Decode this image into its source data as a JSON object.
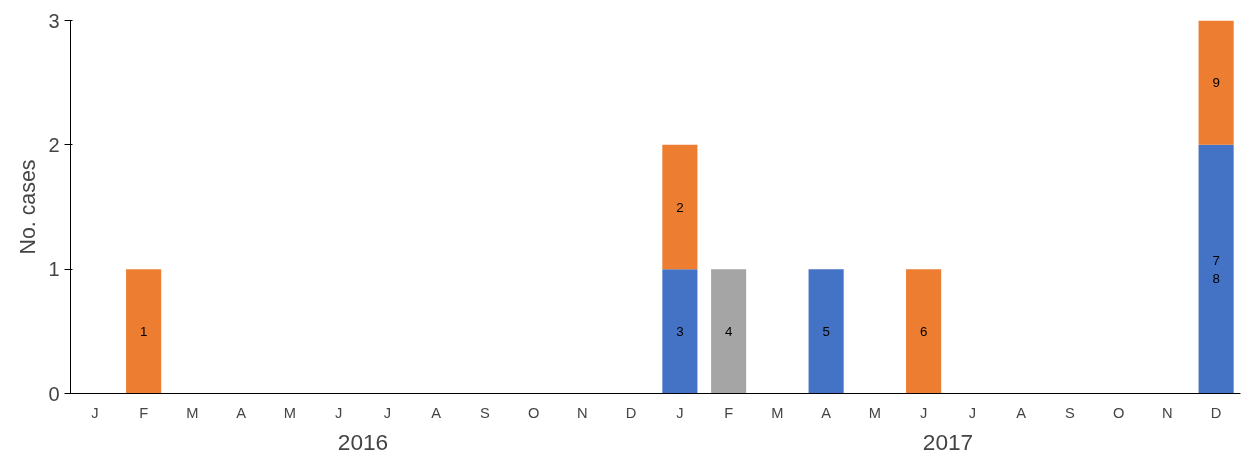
{
  "chart_data": {
    "type": "bar",
    "stacked": true,
    "ylabel": "No. cases",
    "categories": [
      "J",
      "F",
      "M",
      "A",
      "M",
      "J",
      "J",
      "A",
      "S",
      "O",
      "N",
      "D",
      "J",
      "F",
      "M",
      "A",
      "M",
      "J",
      "J",
      "A",
      "S",
      "O",
      "N",
      "D"
    ],
    "series": [
      {
        "color": "#4472c4",
        "values": [
          null,
          null,
          null,
          null,
          null,
          null,
          null,
          null,
          null,
          null,
          null,
          null,
          1,
          null,
          null,
          1,
          null,
          null,
          null,
          null,
          null,
          null,
          null,
          2
        ]
      },
      {
        "color": "#a5a5a5",
        "values": [
          null,
          null,
          null,
          null,
          null,
          null,
          null,
          null,
          null,
          null,
          null,
          null,
          null,
          1,
          null,
          null,
          null,
          null,
          null,
          null,
          null,
          null,
          null,
          null
        ]
      },
      {
        "color": "#ed7d31",
        "values": [
          null,
          1,
          null,
          null,
          null,
          null,
          null,
          null,
          null,
          null,
          null,
          null,
          1,
          null,
          null,
          null,
          null,
          1,
          null,
          null,
          null,
          null,
          null,
          1
        ]
      }
    ],
    "ylim": [
      0,
      3
    ],
    "yticks": [
      0,
      1,
      2,
      3
    ],
    "annotations": [
      "2016",
      "2017",
      "1",
      "3",
      "2",
      "4",
      "5",
      "6",
      "7\n8",
      "9"
    ]
  }
}
